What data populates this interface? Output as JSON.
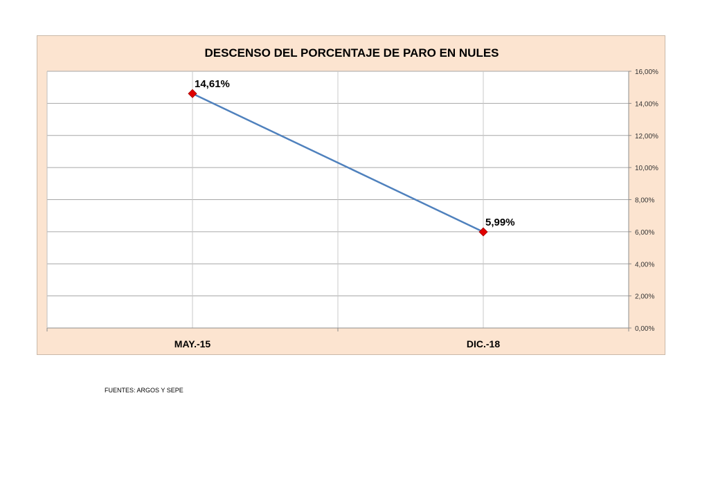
{
  "chart_data": {
    "type": "line",
    "title": "DESCENSO DEL PORCENTAJE DE PARO EN NULES",
    "categories": [
      "MAY.-15",
      "DIC.-18"
    ],
    "series": [
      {
        "values": [
          14.61,
          5.99
        ]
      }
    ],
    "data_labels": [
      "14,61%",
      "5,99%"
    ],
    "y_ticks": [
      0,
      2,
      4,
      6,
      8,
      10,
      12,
      14,
      16
    ],
    "y_tick_labels": [
      "0,00%",
      "2,00%",
      "4,00%",
      "6,00%",
      "8,00%",
      "10,00%",
      "12,00%",
      "14,00%",
      "16,00%"
    ],
    "ylim": [
      0,
      16
    ],
    "y_axis_side": "right",
    "grid": true,
    "line_color": "#4f81bd",
    "marker_color": "#e00000",
    "marker_shape": "diamond"
  },
  "footer": {
    "source": "FUENTES: ARGOS Y SEPE"
  }
}
